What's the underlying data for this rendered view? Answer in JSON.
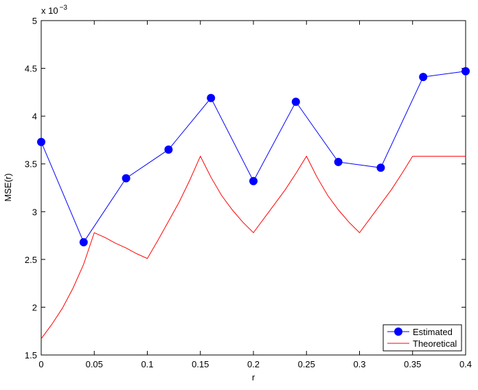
{
  "chart_data": {
    "type": "line",
    "x_label": "r",
    "y_label": "MSE(r)",
    "y_multiplier": {
      "base": "x 10",
      "exponent": "−3"
    },
    "xlim": [
      0,
      0.4
    ],
    "xticks": [
      0,
      0.05,
      0.1,
      0.15,
      0.2,
      0.25,
      0.3,
      0.35,
      0.4
    ],
    "ylim": [
      1.5,
      5
    ],
    "yticks": [
      1.5,
      2,
      2.5,
      3,
      3.5,
      4,
      4.5,
      5
    ],
    "grid": false,
    "legend": "lower right",
    "series": [
      {
        "name": "Estimated",
        "color": "#0000ff",
        "marker": "circle",
        "x": [
          0,
          0.04,
          0.08,
          0.12,
          0.16,
          0.2,
          0.24,
          0.28,
          0.32,
          0.36,
          0.4
        ],
        "values": [
          3.73,
          2.68,
          3.35,
          3.65,
          4.19,
          3.32,
          4.15,
          3.52,
          3.46,
          4.41,
          4.47
        ]
      },
      {
        "name": "Theoretical",
        "color": "#ff0000",
        "marker": "none",
        "x": [
          0,
          0.01,
          0.02,
          0.03,
          0.04,
          0.05,
          0.06,
          0.07,
          0.08,
          0.09,
          0.1,
          0.11,
          0.12,
          0.13,
          0.14,
          0.15,
          0.16,
          0.17,
          0.18,
          0.19,
          0.2,
          0.21,
          0.22,
          0.23,
          0.24,
          0.25,
          0.26,
          0.27,
          0.28,
          0.29,
          0.3,
          0.31,
          0.32,
          0.33,
          0.34,
          0.35,
          0.4
        ],
        "values": [
          1.67,
          1.82,
          1.99,
          2.2,
          2.45,
          2.78,
          2.73,
          2.67,
          2.62,
          2.56,
          2.51,
          2.7,
          2.9,
          3.1,
          3.33,
          3.58,
          3.36,
          3.17,
          3.02,
          2.89,
          2.78,
          2.93,
          3.08,
          3.23,
          3.4,
          3.58,
          3.36,
          3.17,
          3.02,
          2.89,
          2.78,
          2.93,
          3.08,
          3.23,
          3.4,
          3.58,
          3.58
        ]
      }
    ]
  }
}
